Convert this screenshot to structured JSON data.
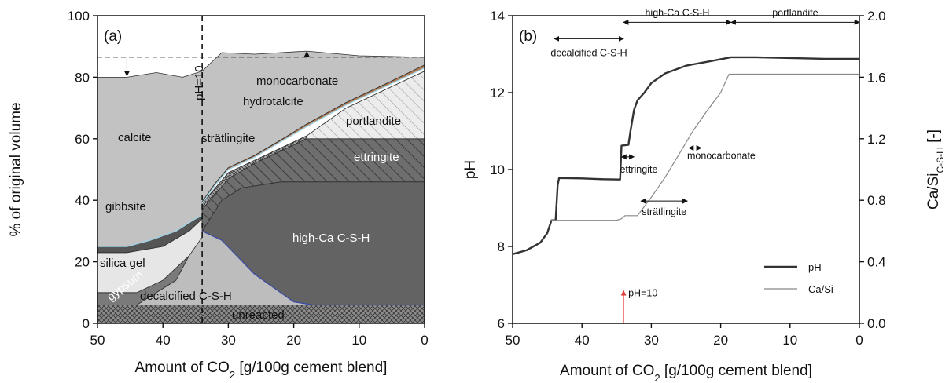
{
  "chart_data": [
    {
      "panel_label": "(a)",
      "type": "area",
      "xlabel": "Amount of CO₂ [g/100g cement blend]",
      "ylabel": "% of original volume",
      "xlim": [
        50,
        0
      ],
      "ylim": [
        0,
        100
      ],
      "x_ticks": [
        50,
        40,
        30,
        20,
        10,
        0
      ],
      "y_ticks": [
        0,
        20,
        40,
        60,
        80,
        100
      ],
      "series": [
        {
          "name": "unreacted",
          "color": "#8c8c8c",
          "hatch": "crosshatch",
          "points": [
            [
              50,
              0
            ],
            [
              0,
              0
            ],
            [
              0,
              6
            ],
            [
              50,
              6
            ]
          ]
        },
        {
          "name": "decalcified  C-S-H",
          "color": "#bdbdbd",
          "points": [
            [
              50,
              6
            ],
            [
              44,
              6
            ],
            [
              38,
              14
            ],
            [
              34,
              30
            ],
            [
              31,
              27
            ],
            [
              26,
              16
            ],
            [
              20,
              7
            ],
            [
              17,
              6
            ],
            [
              0,
              6
            ]
          ]
        },
        {
          "name": "gypsum",
          "color": "#7a7a7a",
          "points": [
            [
              50,
              6
            ],
            [
              50,
              10
            ],
            [
              44,
              10
            ],
            [
              40,
              14
            ],
            [
              36,
              22
            ],
            [
              34,
              28
            ],
            [
              34,
              30
            ],
            [
              38,
              14
            ],
            [
              44,
              6
            ]
          ]
        },
        {
          "name": "silica gel",
          "color": "#e6e6e6",
          "points": [
            [
              50,
              10
            ],
            [
              50,
              23
            ],
            [
              45.5,
              23
            ],
            [
              40,
              25
            ],
            [
              36,
              30
            ],
            [
              34,
              34
            ],
            [
              34,
              28
            ],
            [
              36,
              22
            ],
            [
              40,
              14
            ],
            [
              44,
              10
            ]
          ]
        },
        {
          "name": "gibbsite",
          "color": "#555555",
          "points": [
            [
              50,
              23
            ],
            [
              50,
              25
            ],
            [
              45.5,
              25
            ],
            [
              42,
              27
            ],
            [
              38,
              30
            ],
            [
              35,
              34
            ],
            [
              34,
              35
            ],
            [
              34,
              34
            ],
            [
              36,
              30
            ],
            [
              40,
              25
            ],
            [
              45.5,
              23
            ]
          ]
        },
        {
          "name": "high-Ca C-S-H",
          "color": "#636363",
          "points": [
            [
              34,
              30
            ],
            [
              31,
              40
            ],
            [
              28,
              44
            ],
            [
              22,
              46
            ],
            [
              15,
              46
            ],
            [
              0,
              46
            ],
            [
              0,
              6
            ],
            [
              17,
              6
            ],
            [
              20,
              7
            ],
            [
              26,
              16
            ],
            [
              31,
              27
            ]
          ]
        },
        {
          "name": "ettringite",
          "color": "#6e6e6e",
          "hatch": "diagonal",
          "points": [
            [
              34,
              30
            ],
            [
              34,
              37
            ],
            [
              32,
              42
            ],
            [
              30,
              47
            ],
            [
              26,
              52
            ],
            [
              22,
              56
            ],
            [
              18,
              60
            ],
            [
              0,
              60
            ],
            [
              0,
              46
            ],
            [
              15,
              46
            ],
            [
              22,
              46
            ],
            [
              28,
              44
            ],
            [
              31,
              40
            ]
          ]
        },
        {
          "name": "strätlingite",
          "color": "#9a9a9a",
          "hatch": "crosshatch",
          "points": [
            [
              34,
              37
            ],
            [
              34,
              39
            ],
            [
              32,
              44
            ],
            [
              30,
              49
            ],
            [
              26,
              53
            ],
            [
              22,
              57
            ],
            [
              18,
              61
            ],
            [
              18,
              60
            ],
            [
              22,
              56
            ],
            [
              26,
              52
            ],
            [
              30,
              47
            ],
            [
              32,
              42
            ]
          ]
        },
        {
          "name": "portlandite",
          "color": "#e8e8e8",
          "hatch": "diagonal",
          "points": [
            [
              18,
              61
            ],
            [
              12,
              70
            ],
            [
              6,
              76
            ],
            [
              0,
              82
            ],
            [
              0,
              60
            ],
            [
              18,
              60
            ]
          ]
        },
        {
          "name": "hydrotalcite",
          "color": "#ffffff",
          "points": [
            [
              34,
              39
            ],
            [
              32,
              45
            ],
            [
              30,
              50
            ],
            [
              26,
              54
            ],
            [
              22,
              59
            ],
            [
              18,
              64
            ],
            [
              12,
              71
            ],
            [
              6,
              77
            ],
            [
              0,
              83
            ],
            [
              0,
              82
            ],
            [
              6,
              76
            ],
            [
              12,
              70
            ],
            [
              18,
              61
            ],
            [
              22,
              57
            ],
            [
              26,
              53
            ],
            [
              30,
              49
            ],
            [
              32,
              44
            ]
          ]
        },
        {
          "name": "monocarbonate",
          "color": "#b0764e",
          "points": [
            [
              34,
              39.6
            ],
            [
              32,
              45.6
            ],
            [
              30,
              50.6
            ],
            [
              26,
              54.6
            ],
            [
              22,
              59.6
            ],
            [
              18,
              64.8
            ],
            [
              12,
              71.8
            ],
            [
              6,
              77.8
            ],
            [
              0,
              84
            ],
            [
              0,
              83
            ],
            [
              6,
              77
            ],
            [
              12,
              71
            ],
            [
              18,
              64
            ],
            [
              22,
              59
            ],
            [
              26,
              54
            ],
            [
              30,
              50
            ],
            [
              32,
              45
            ],
            [
              34,
              39
            ]
          ]
        },
        {
          "name": "calcite",
          "color": "#c2c2c2",
          "points": [
            [
              50,
              25
            ],
            [
              50,
              80
            ],
            [
              45.5,
              80
            ],
            [
              41,
              81.5
            ],
            [
              37,
              80
            ],
            [
              34,
              82
            ],
            [
              31,
              88
            ],
            [
              26,
              87.5
            ],
            [
              18,
              88.5
            ],
            [
              10,
              87
            ],
            [
              0,
              86.5
            ],
            [
              0,
              84
            ],
            [
              6,
              77.8
            ],
            [
              12,
              71.8
            ],
            [
              18,
              64.8
            ],
            [
              22,
              59.6
            ],
            [
              26,
              54.6
            ],
            [
              30,
              50.6
            ],
            [
              32,
              45.6
            ],
            [
              34,
              39.6
            ],
            [
              34,
              35
            ],
            [
              38,
              30
            ],
            [
              42,
              27
            ],
            [
              45.5,
              25
            ]
          ]
        }
      ],
      "labels": [
        "calcite",
        "monocarbonate",
        "hydrotalcite",
        "portlandite",
        "strätlingite",
        "ettringite",
        "gibbsite",
        "high-Ca C-S-H",
        "silica gel",
        "gypsum",
        "decalcified  C-S-H",
        "unreacted",
        "pH=10"
      ],
      "reference_lines": [
        {
          "orientation": "vertical",
          "x": 34,
          "style": "dashed",
          "label": "pH=10"
        },
        {
          "orientation": "horizontal",
          "y": 86.5,
          "style": "dashed"
        }
      ]
    },
    {
      "panel_label": "(b)",
      "type": "line",
      "xlabel": "Amount of CO₂ [g/100g cement blend]",
      "ylabel": "pH",
      "ylabel_right": "Ca/Si",
      "ylabel_right_subscript": "C-S-H",
      "ylabel_right_suffix": " [-]",
      "xlim": [
        50,
        0
      ],
      "ylim": [
        6,
        14
      ],
      "ylim_right": [
        0.0,
        2.0
      ],
      "x_ticks": [
        50,
        40,
        30,
        20,
        10,
        0
      ],
      "y_ticks": [
        6,
        8,
        10,
        12,
        14
      ],
      "y_ticks_right": [
        "0.0",
        "0.4",
        "0.8",
        "1.2",
        "1.6",
        "2.0"
      ],
      "legend_position": "bottom-right",
      "series": [
        {
          "name": "pH",
          "axis": "left",
          "color": "#333333",
          "points": [
            [
              50,
              7.8
            ],
            [
              48,
              7.9
            ],
            [
              46,
              8.1
            ],
            [
              45,
              8.35
            ],
            [
              44.4,
              8.68
            ],
            [
              43.8,
              8.68
            ],
            [
              43.5,
              9.6
            ],
            [
              43.3,
              9.78
            ],
            [
              40,
              9.77
            ],
            [
              37,
              9.75
            ],
            [
              34.5,
              9.74
            ],
            [
              34.3,
              10.62
            ],
            [
              33.3,
              10.64
            ],
            [
              33.0,
              11.0
            ],
            [
              32.5,
              11.55
            ],
            [
              32,
              11.8
            ],
            [
              31,
              12.0
            ],
            [
              30,
              12.25
            ],
            [
              28,
              12.5
            ],
            [
              25,
              12.7
            ],
            [
              22,
              12.8
            ],
            [
              18.5,
              12.92
            ],
            [
              15,
              12.92
            ],
            [
              10,
              12.9
            ],
            [
              5,
              12.88
            ],
            [
              0,
              12.88
            ]
          ]
        },
        {
          "name": "Ca/Si",
          "axis": "right",
          "color": "#888888",
          "points": [
            [
              44.5,
              0.67
            ],
            [
              40,
              0.67
            ],
            [
              35,
              0.67
            ],
            [
              34.3,
              0.68
            ],
            [
              33.8,
              0.7
            ],
            [
              32,
              0.7
            ],
            [
              31.5,
              0.73
            ],
            [
              30,
              0.82
            ],
            [
              28,
              0.95
            ],
            [
              26,
              1.1
            ],
            [
              24,
              1.25
            ],
            [
              22,
              1.38
            ],
            [
              20,
              1.5
            ],
            [
              18.8,
              1.62
            ],
            [
              15,
              1.62
            ],
            [
              10,
              1.62
            ],
            [
              5,
              1.62
            ],
            [
              0,
              1.62
            ]
          ]
        }
      ],
      "annotations": [
        {
          "text": "decalcified  C-S-H",
          "from": 44,
          "to": 34,
          "value": 13.4,
          "axis": "left"
        },
        {
          "text": "high-Ca C-S-H",
          "from": 34,
          "to": 18.5,
          "value": 13.83,
          "axis": "left"
        },
        {
          "text": "portlandite",
          "from": 18.5,
          "to": 0,
          "value": 13.83,
          "axis": "left"
        },
        {
          "text": "ettringite",
          "from": 34.3,
          "to": 32.5,
          "value": 10.33,
          "axis": "left"
        },
        {
          "text": "monocarbonate",
          "from": 24.6,
          "to": 22.8,
          "value": 1.14,
          "axis": "right"
        },
        {
          "text": "strätlingite",
          "from": 31.5,
          "to": 24.8,
          "value": 0.795,
          "axis": "right"
        }
      ],
      "marker": {
        "text": "pH=10",
        "x": 34,
        "color": "#e53935"
      }
    }
  ]
}
